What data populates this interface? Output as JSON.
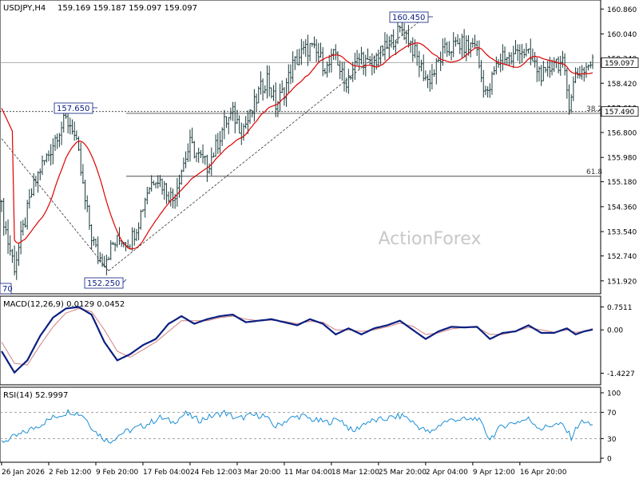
{
  "header": {
    "symbol": "USDJPY,H4",
    "ohlc": "159.169 159.187 159.097 159.097"
  },
  "watermark": "ActionForex",
  "chart_data": [
    {
      "type": "candlestick",
      "name": "price-panel",
      "y_ticks": [
        "160.860",
        "160.040",
        "159.240",
        "158.420",
        "157.610",
        "156.800",
        "155.980",
        "155.180",
        "154.360",
        "153.540",
        "152.740",
        "151.920"
      ],
      "y_tick_values": [
        160.86,
        160.04,
        159.24,
        158.42,
        157.61,
        156.8,
        155.98,
        155.18,
        154.36,
        153.54,
        152.74,
        151.92
      ],
      "ylim": [
        151.6,
        161.0
      ],
      "current_price": "159.097",
      "current_price_value": 159.097,
      "level_marker": "157.490",
      "level_marker_value": 157.49,
      "fib_levels": [
        {
          "label": "38.2",
          "value": 157.43
        },
        {
          "label": "61.8",
          "value": 155.36
        }
      ],
      "annotations": [
        {
          "label": "160.450",
          "value": 160.45,
          "position": "top"
        },
        {
          "label": "157.650",
          "value": 157.65,
          "position": "top"
        },
        {
          "label": "152.250",
          "value": 152.25,
          "position": "bottom"
        },
        {
          "label": "70",
          "value": 152.0,
          "position": "bottom-left"
        }
      ],
      "moving_average": "red",
      "close_path": [
        {
          "t": 0,
          "v": 154.3
        },
        {
          "t": 3,
          "v": 153.2
        },
        {
          "t": 6,
          "v": 152.4
        },
        {
          "t": 10,
          "v": 153.6
        },
        {
          "t": 14,
          "v": 154.8
        },
        {
          "t": 18,
          "v": 155.6
        },
        {
          "t": 22,
          "v": 156.1
        },
        {
          "t": 26,
          "v": 156.8
        },
        {
          "t": 30,
          "v": 157.2
        },
        {
          "t": 33,
          "v": 157.0
        },
        {
          "t": 36,
          "v": 156.0
        },
        {
          "t": 39,
          "v": 154.5
        },
        {
          "t": 42,
          "v": 153.4
        },
        {
          "t": 45,
          "v": 152.7
        },
        {
          "t": 48,
          "v": 152.6
        },
        {
          "t": 52,
          "v": 153.1
        },
        {
          "t": 56,
          "v": 153.3
        },
        {
          "t": 60,
          "v": 153.2
        },
        {
          "t": 64,
          "v": 153.9
        },
        {
          "t": 68,
          "v": 154.9
        },
        {
          "t": 72,
          "v": 155.4
        },
        {
          "t": 76,
          "v": 155.0
        },
        {
          "t": 80,
          "v": 154.6
        },
        {
          "t": 84,
          "v": 155.6
        },
        {
          "t": 88,
          "v": 156.4
        },
        {
          "t": 92,
          "v": 156.0
        },
        {
          "t": 96,
          "v": 155.7
        },
        {
          "t": 100,
          "v": 156.3
        },
        {
          "t": 104,
          "v": 157.1
        },
        {
          "t": 108,
          "v": 157.4
        },
        {
          "t": 112,
          "v": 156.9
        },
        {
          "t": 116,
          "v": 157.3
        },
        {
          "t": 120,
          "v": 158.1
        },
        {
          "t": 124,
          "v": 158.6
        },
        {
          "t": 128,
          "v": 157.7
        },
        {
          "t": 132,
          "v": 158.2
        },
        {
          "t": 136,
          "v": 159.0
        },
        {
          "t": 140,
          "v": 159.4
        },
        {
          "t": 144,
          "v": 159.6
        },
        {
          "t": 148,
          "v": 159.3
        },
        {
          "t": 152,
          "v": 158.9
        },
        {
          "t": 156,
          "v": 159.4
        },
        {
          "t": 160,
          "v": 158.4
        },
        {
          "t": 164,
          "v": 158.9
        },
        {
          "t": 168,
          "v": 159.3
        },
        {
          "t": 172,
          "v": 158.9
        },
        {
          "t": 176,
          "v": 159.3
        },
        {
          "t": 180,
          "v": 159.6
        },
        {
          "t": 184,
          "v": 160.0
        },
        {
          "t": 187,
          "v": 160.2
        },
        {
          "t": 190,
          "v": 159.9
        },
        {
          "t": 193,
          "v": 159.4
        },
        {
          "t": 196,
          "v": 158.9
        },
        {
          "t": 199,
          "v": 158.5
        },
        {
          "t": 202,
          "v": 158.8
        },
        {
          "t": 206,
          "v": 159.4
        },
        {
          "t": 210,
          "v": 159.6
        },
        {
          "t": 214,
          "v": 159.7
        },
        {
          "t": 218,
          "v": 159.6
        },
        {
          "t": 221,
          "v": 159.8
        },
        {
          "t": 224,
          "v": 158.6
        },
        {
          "t": 227,
          "v": 158.0
        },
        {
          "t": 230,
          "v": 158.8
        },
        {
          "t": 234,
          "v": 159.4
        },
        {
          "t": 238,
          "v": 159.2
        },
        {
          "t": 242,
          "v": 159.6
        },
        {
          "t": 246,
          "v": 159.3
        },
        {
          "t": 250,
          "v": 158.9
        },
        {
          "t": 254,
          "v": 158.6
        },
        {
          "t": 258,
          "v": 159.2
        },
        {
          "t": 262,
          "v": 159.0
        },
        {
          "t": 265,
          "v": 157.8
        },
        {
          "t": 268,
          "v": 158.7
        },
        {
          "t": 272,
          "v": 158.9
        },
        {
          "t": 276,
          "v": 159.1
        }
      ]
    },
    {
      "type": "line",
      "name": "macd-panel",
      "label": "MACD(12,26,9) 0.0129 0.0452",
      "y_ticks": [
        "0.7511",
        "0.00",
        "-1.4227"
      ],
      "y_tick_values": [
        0.7511,
        0.0,
        -1.4227
      ],
      "ylim": [
        -1.75,
        1.0
      ],
      "series": [
        {
          "color": "navy",
          "points": [
            {
              "t": 0,
              "v": -0.7
            },
            {
              "t": 6,
              "v": -1.4
            },
            {
              "t": 12,
              "v": -1.0
            },
            {
              "t": 18,
              "v": -0.2
            },
            {
              "t": 24,
              "v": 0.4
            },
            {
              "t": 30,
              "v": 0.7
            },
            {
              "t": 36,
              "v": 0.75
            },
            {
              "t": 42,
              "v": 0.5
            },
            {
              "t": 48,
              "v": -0.4
            },
            {
              "t": 54,
              "v": -1.0
            },
            {
              "t": 60,
              "v": -0.8
            },
            {
              "t": 66,
              "v": -0.5
            },
            {
              "t": 72,
              "v": -0.3
            },
            {
              "t": 78,
              "v": 0.2
            },
            {
              "t": 84,
              "v": 0.45
            },
            {
              "t": 90,
              "v": 0.2
            },
            {
              "t": 96,
              "v": 0.35
            },
            {
              "t": 102,
              "v": 0.45
            },
            {
              "t": 108,
              "v": 0.5
            },
            {
              "t": 114,
              "v": 0.25
            },
            {
              "t": 120,
              "v": 0.3
            },
            {
              "t": 126,
              "v": 0.35
            },
            {
              "t": 132,
              "v": 0.25
            },
            {
              "t": 138,
              "v": 0.15
            },
            {
              "t": 144,
              "v": 0.35
            },
            {
              "t": 150,
              "v": 0.2
            },
            {
              "t": 156,
              "v": -0.15
            },
            {
              "t": 162,
              "v": 0.05
            },
            {
              "t": 168,
              "v": -0.15
            },
            {
              "t": 174,
              "v": 0.05
            },
            {
              "t": 180,
              "v": 0.15
            },
            {
              "t": 186,
              "v": 0.3
            },
            {
              "t": 192,
              "v": 0.0
            },
            {
              "t": 198,
              "v": -0.3
            },
            {
              "t": 204,
              "v": -0.05
            },
            {
              "t": 210,
              "v": 0.1
            },
            {
              "t": 216,
              "v": 0.08
            },
            {
              "t": 222,
              "v": 0.1
            },
            {
              "t": 228,
              "v": -0.3
            },
            {
              "t": 234,
              "v": -0.1
            },
            {
              "t": 240,
              "v": -0.05
            },
            {
              "t": 246,
              "v": 0.15
            },
            {
              "t": 252,
              "v": -0.1
            },
            {
              "t": 258,
              "v": -0.1
            },
            {
              "t": 264,
              "v": 0.05
            },
            {
              "t": 268,
              "v": -0.15
            },
            {
              "t": 272,
              "v": -0.05
            },
            {
              "t": 276,
              "v": 0.01
            }
          ]
        },
        {
          "color": "#d08080",
          "points": [
            {
              "t": 0,
              "v": -0.4
            },
            {
              "t": 6,
              "v": -1.1
            },
            {
              "t": 12,
              "v": -1.15
            },
            {
              "t": 18,
              "v": -0.5
            },
            {
              "t": 24,
              "v": 0.1
            },
            {
              "t": 30,
              "v": 0.55
            },
            {
              "t": 36,
              "v": 0.7
            },
            {
              "t": 42,
              "v": 0.6
            },
            {
              "t": 48,
              "v": 0.0
            },
            {
              "t": 54,
              "v": -0.7
            },
            {
              "t": 60,
              "v": -0.9
            },
            {
              "t": 66,
              "v": -0.65
            },
            {
              "t": 72,
              "v": -0.4
            },
            {
              "t": 78,
              "v": -0.05
            },
            {
              "t": 84,
              "v": 0.3
            },
            {
              "t": 90,
              "v": 0.3
            },
            {
              "t": 96,
              "v": 0.3
            },
            {
              "t": 102,
              "v": 0.4
            },
            {
              "t": 108,
              "v": 0.45
            },
            {
              "t": 114,
              "v": 0.35
            },
            {
              "t": 120,
              "v": 0.3
            },
            {
              "t": 126,
              "v": 0.32
            },
            {
              "t": 132,
              "v": 0.28
            },
            {
              "t": 138,
              "v": 0.2
            },
            {
              "t": 144,
              "v": 0.28
            },
            {
              "t": 150,
              "v": 0.25
            },
            {
              "t": 156,
              "v": 0.0
            },
            {
              "t": 162,
              "v": 0.0
            },
            {
              "t": 168,
              "v": -0.05
            },
            {
              "t": 174,
              "v": 0.0
            },
            {
              "t": 180,
              "v": 0.1
            },
            {
              "t": 186,
              "v": 0.22
            },
            {
              "t": 192,
              "v": 0.12
            },
            {
              "t": 198,
              "v": -0.15
            },
            {
              "t": 204,
              "v": -0.1
            },
            {
              "t": 210,
              "v": 0.03
            },
            {
              "t": 216,
              "v": 0.08
            },
            {
              "t": 222,
              "v": 0.08
            },
            {
              "t": 228,
              "v": -0.15
            },
            {
              "t": 234,
              "v": -0.15
            },
            {
              "t": 240,
              "v": -0.05
            },
            {
              "t": 246,
              "v": 0.08
            },
            {
              "t": 252,
              "v": 0.0
            },
            {
              "t": 258,
              "v": -0.08
            },
            {
              "t": 264,
              "v": 0.0
            },
            {
              "t": 268,
              "v": -0.08
            },
            {
              "t": 272,
              "v": -0.05
            },
            {
              "t": 276,
              "v": 0.045
            }
          ]
        }
      ]
    },
    {
      "type": "line",
      "name": "rsi-panel",
      "label": "RSI(14) 52.9997",
      "y_ticks": [
        "100",
        "70",
        "30",
        "0"
      ],
      "y_tick_values": [
        100,
        70,
        30,
        0
      ],
      "ylim": [
        0,
        100
      ],
      "reference_lines": [
        70,
        30
      ],
      "series": [
        {
          "color": "#1e8fd6",
          "points": [
            {
              "t": 0,
              "v": 25
            },
            {
              "t": 8,
              "v": 35
            },
            {
              "t": 16,
              "v": 48
            },
            {
              "t": 24,
              "v": 62
            },
            {
              "t": 32,
              "v": 72
            },
            {
              "t": 38,
              "v": 66
            },
            {
              "t": 44,
              "v": 40
            },
            {
              "t": 50,
              "v": 25
            },
            {
              "t": 56,
              "v": 38
            },
            {
              "t": 62,
              "v": 45
            },
            {
              "t": 68,
              "v": 52
            },
            {
              "t": 74,
              "v": 62
            },
            {
              "t": 80,
              "v": 55
            },
            {
              "t": 86,
              "v": 68
            },
            {
              "t": 92,
              "v": 58
            },
            {
              "t": 98,
              "v": 64
            },
            {
              "t": 104,
              "v": 70
            },
            {
              "t": 110,
              "v": 60
            },
            {
              "t": 116,
              "v": 65
            },
            {
              "t": 122,
              "v": 66
            },
            {
              "t": 128,
              "v": 48
            },
            {
              "t": 134,
              "v": 60
            },
            {
              "t": 140,
              "v": 65
            },
            {
              "t": 146,
              "v": 58
            },
            {
              "t": 152,
              "v": 55
            },
            {
              "t": 158,
              "v": 60
            },
            {
              "t": 164,
              "v": 40
            },
            {
              "t": 170,
              "v": 55
            },
            {
              "t": 176,
              "v": 58
            },
            {
              "t": 182,
              "v": 62
            },
            {
              "t": 188,
              "v": 65
            },
            {
              "t": 194,
              "v": 50
            },
            {
              "t": 200,
              "v": 38
            },
            {
              "t": 206,
              "v": 55
            },
            {
              "t": 212,
              "v": 60
            },
            {
              "t": 218,
              "v": 58
            },
            {
              "t": 222,
              "v": 62
            },
            {
              "t": 228,
              "v": 30
            },
            {
              "t": 234,
              "v": 50
            },
            {
              "t": 240,
              "v": 55
            },
            {
              "t": 246,
              "v": 60
            },
            {
              "t": 252,
              "v": 45
            },
            {
              "t": 258,
              "v": 52
            },
            {
              "t": 262,
              "v": 50
            },
            {
              "t": 266,
              "v": 32
            },
            {
              "t": 270,
              "v": 55
            },
            {
              "t": 276,
              "v": 53
            }
          ]
        }
      ]
    }
  ],
  "x_axis": {
    "labels": [
      "26 Jan 2026",
      "2 Feb 12:00",
      "9 Feb 20:00",
      "17 Feb 04:00",
      "24 Feb 12:00",
      "3 Mar 20:00",
      "11 Mar 04:00",
      "18 Mar 12:00",
      "25 Mar 20:00",
      "2 Apr 04:00",
      "9 Apr 12:00",
      "16 Apr 20:00"
    ],
    "label_positions_t": [
      0,
      22,
      44,
      66,
      88,
      110,
      132,
      154,
      176,
      198,
      220,
      242
    ]
  }
}
